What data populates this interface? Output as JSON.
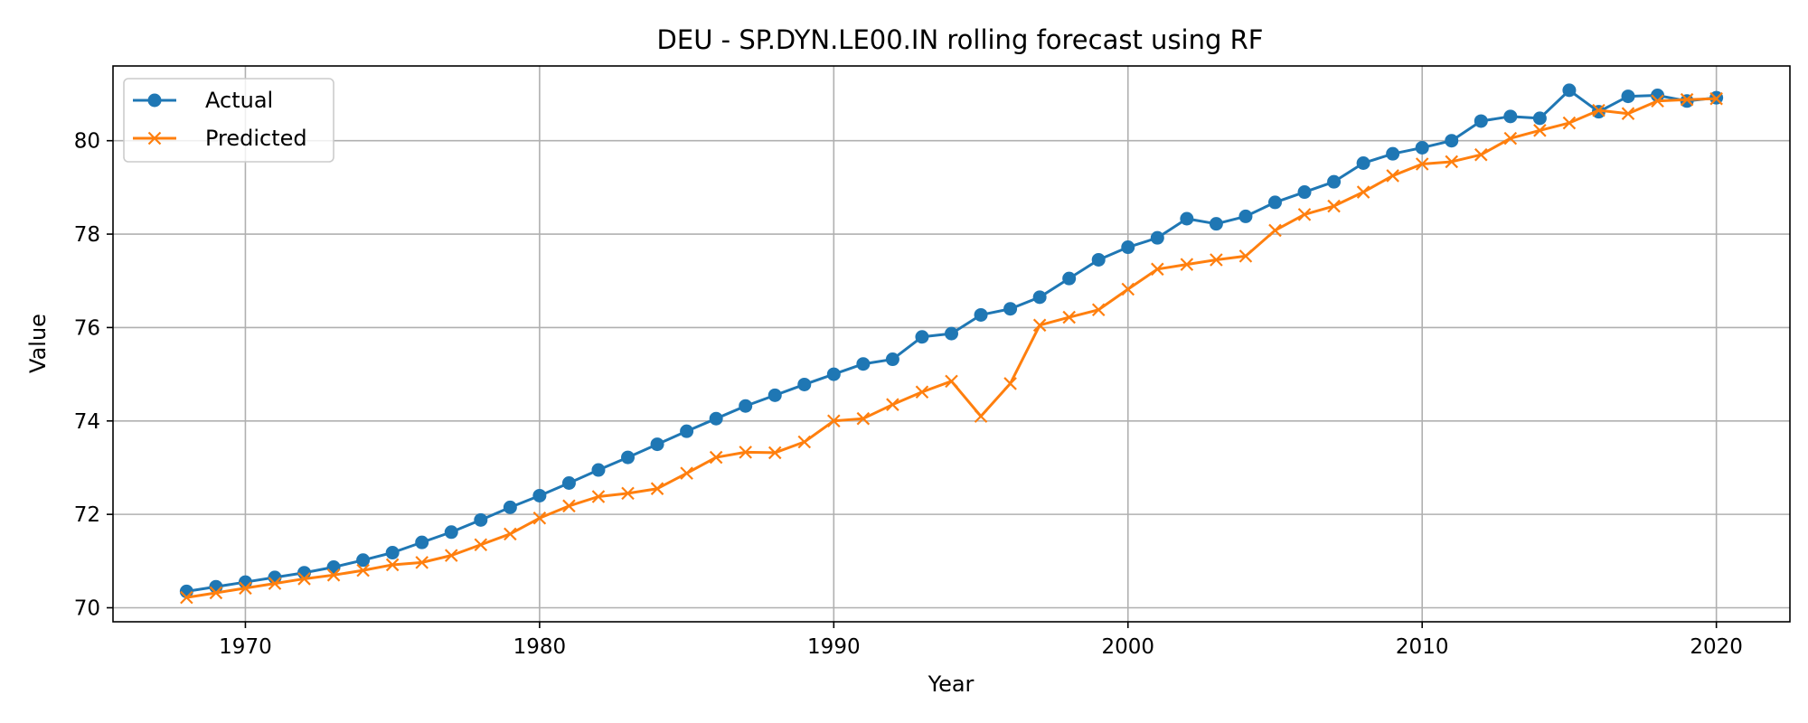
{
  "chart_data": {
    "type": "line",
    "title": "DEU - SP.DYN.LE00.IN rolling forecast using RF",
    "xlabel": "Year",
    "ylabel": "Value",
    "xlim": [
      1965.5,
      2022.5
    ],
    "ylim": [
      69.7,
      81.6
    ],
    "xticks": [
      1970,
      1980,
      1990,
      2000,
      2010,
      2020
    ],
    "yticks": [
      70,
      72,
      74,
      76,
      78,
      80
    ],
    "grid": true,
    "legend_position": "upper-left",
    "x": [
      1968,
      1969,
      1970,
      1971,
      1972,
      1973,
      1974,
      1975,
      1976,
      1977,
      1978,
      1979,
      1980,
      1981,
      1982,
      1983,
      1984,
      1985,
      1986,
      1987,
      1988,
      1989,
      1990,
      1991,
      1992,
      1993,
      1994,
      1995,
      1996,
      1997,
      1998,
      1999,
      2000,
      2001,
      2002,
      2003,
      2004,
      2005,
      2006,
      2007,
      2008,
      2009,
      2010,
      2011,
      2012,
      2013,
      2014,
      2015,
      2016,
      2017,
      2018,
      2019,
      2020
    ],
    "series": [
      {
        "name": "Actual",
        "color": "#1f77b4",
        "marker": "circle",
        "values": [
          70.35,
          70.45,
          70.55,
          70.65,
          70.75,
          70.87,
          71.02,
          71.18,
          71.4,
          71.62,
          71.88,
          72.15,
          72.4,
          72.67,
          72.95,
          73.22,
          73.5,
          73.78,
          74.05,
          74.32,
          74.55,
          74.78,
          75.0,
          75.22,
          75.32,
          75.8,
          75.87,
          76.27,
          76.4,
          76.65,
          77.05,
          77.45,
          77.72,
          77.92,
          78.33,
          78.22,
          78.38,
          78.68,
          78.9,
          79.12,
          79.52,
          79.72,
          79.85,
          80.0,
          80.42,
          80.52,
          80.48,
          81.08,
          80.62,
          80.95,
          80.97,
          80.85,
          80.92
        ]
      },
      {
        "name": "Predicted",
        "color": "#ff7f0e",
        "marker": "x",
        "values": [
          70.22,
          70.32,
          70.42,
          70.52,
          70.62,
          70.7,
          70.8,
          70.92,
          70.97,
          71.12,
          71.35,
          71.58,
          71.92,
          72.18,
          72.38,
          72.45,
          72.55,
          72.88,
          73.22,
          73.33,
          73.32,
          73.55,
          74.0,
          74.05,
          74.35,
          74.62,
          74.85,
          74.1,
          74.8,
          76.05,
          76.22,
          76.38,
          76.82,
          77.25,
          77.35,
          77.45,
          77.53,
          78.08,
          78.42,
          78.6,
          78.9,
          79.25,
          79.5,
          79.55,
          79.7,
          80.05,
          80.22,
          80.38,
          80.65,
          80.58,
          80.85,
          80.88,
          80.9
        ]
      }
    ]
  }
}
